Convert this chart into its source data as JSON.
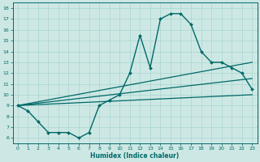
{
  "bg_color": "#cde8e4",
  "line_color": "#006868",
  "grid_color": "#a8d4cf",
  "xlabel": "Humidex (Indice chaleur)",
  "xlim": [
    -0.5,
    23.5
  ],
  "ylim": [
    5.5,
    18.5
  ],
  "xticks": [
    0,
    1,
    2,
    3,
    4,
    5,
    6,
    7,
    8,
    9,
    10,
    11,
    12,
    13,
    14,
    15,
    16,
    17,
    18,
    19,
    20,
    21,
    22,
    23
  ],
  "yticks": [
    6,
    7,
    8,
    9,
    10,
    11,
    12,
    13,
    14,
    15,
    16,
    17,
    18
  ],
  "main_line": {
    "x": [
      0,
      1,
      2,
      3,
      4,
      5,
      6,
      7,
      8,
      9,
      10,
      11,
      12,
      13,
      14,
      15,
      16,
      17,
      18,
      19,
      20,
      21,
      22,
      23
    ],
    "y": [
      9.0,
      8.5,
      7.5,
      6.5,
      6.5,
      6.5,
      6.0,
      6.5,
      9.0,
      9.5,
      10.0,
      12.0,
      15.5,
      12.5,
      17.0,
      17.5,
      17.5,
      16.5,
      14.0,
      13.0,
      13.0,
      12.5,
      12.0,
      10.5
    ]
  },
  "trend_lines": [
    {
      "x": [
        0,
        23
      ],
      "y": [
        9.0,
        10.0
      ]
    },
    {
      "x": [
        0,
        23
      ],
      "y": [
        9.0,
        11.5
      ]
    },
    {
      "x": [
        0,
        23
      ],
      "y": [
        9.0,
        13.0
      ]
    }
  ]
}
